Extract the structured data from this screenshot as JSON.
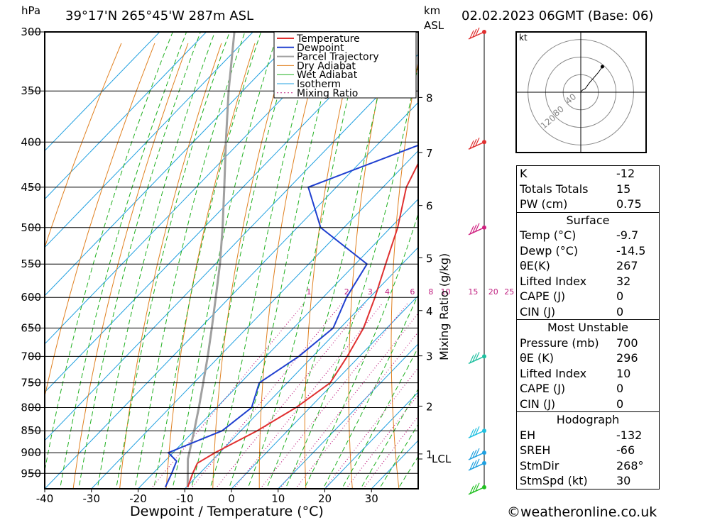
{
  "header": {
    "left_label": "hPa",
    "location": "39°17'N  265°45'W  287m  ASL",
    "km_label": "km",
    "asl_label": "ASL",
    "datetime": "02.02.2023  06GMT  (Base: 06)"
  },
  "chart_data": {
    "type": "skew-t",
    "xlabel": "Dewpoint / Temperature (°C)",
    "ylabel_right": "Mixing Ratio (g/kg)",
    "x_ticks": [
      -40,
      -30,
      -20,
      -10,
      0,
      10,
      20,
      30
    ],
    "pressure_levels": [
      300,
      350,
      400,
      450,
      500,
      550,
      600,
      650,
      700,
      750,
      800,
      850,
      900,
      950
    ],
    "km_ticks": [
      {
        "km": 1,
        "p": 903
      },
      {
        "km": 2,
        "p": 797
      },
      {
        "km": 3,
        "p": 699
      },
      {
        "km": 4,
        "p": 621
      },
      {
        "km": 5,
        "p": 541
      },
      {
        "km": 6,
        "p": 472
      },
      {
        "km": 7,
        "p": 411
      },
      {
        "km": 8,
        "p": 356
      }
    ],
    "lcl_label": "LCL",
    "lcl_pressure": 915,
    "mixing_ratio_labels": [
      "1",
      "2",
      "3",
      "4",
      "6",
      "8",
      "10",
      "15",
      "20",
      "25"
    ],
    "mixing_ratio_values": [
      1,
      2,
      3,
      4,
      6,
      8,
      10,
      15,
      20,
      25
    ],
    "legend": [
      "Temperature",
      "Dewpoint",
      "Parcel Trajectory",
      "Dry Adiabat",
      "Wet Adiabat",
      "Isotherm",
      "Mixing Ratio"
    ],
    "colors": {
      "temperature": "#e03030",
      "dewpoint": "#2040d0",
      "parcel": "#a0a0a0",
      "dry_adiabat": "#e08020",
      "wet_adiabat": "#20b020",
      "isotherm": "#20a0e0",
      "mixing_ratio": "#c02080"
    },
    "temperature_profile": [
      {
        "p": 985,
        "t": -9.7
      },
      {
        "p": 950,
        "t": -11.5
      },
      {
        "p": 925,
        "t": -12.6
      },
      {
        "p": 900,
        "t": -11.0
      },
      {
        "p": 850,
        "t": -6.5
      },
      {
        "p": 800,
        "t": -3.0
      },
      {
        "p": 750,
        "t": -0.8
      },
      {
        "p": 700,
        "t": -2.6
      },
      {
        "p": 650,
        "t": -5.0
      },
      {
        "p": 600,
        "t": -8.9
      },
      {
        "p": 550,
        "t": -13.5
      },
      {
        "p": 500,
        "t": -18.5
      },
      {
        "p": 450,
        "t": -25.0
      },
      {
        "p": 400,
        "t": -29.5
      },
      {
        "p": 350,
        "t": -37.0
      },
      {
        "p": 300,
        "t": -48.0
      }
    ],
    "dewpoint_profile": [
      {
        "p": 985,
        "t": -14.5
      },
      {
        "p": 950,
        "t": -16.0
      },
      {
        "p": 920,
        "t": -17.5
      },
      {
        "p": 900,
        "t": -21.0
      },
      {
        "p": 850,
        "t": -14.0
      },
      {
        "p": 800,
        "t": -12.5
      },
      {
        "p": 750,
        "t": -16.0
      },
      {
        "p": 700,
        "t": -13.0
      },
      {
        "p": 650,
        "t": -11.5
      },
      {
        "p": 600,
        "t": -15.0
      },
      {
        "p": 550,
        "t": -17.5
      },
      {
        "p": 500,
        "t": -35.0
      },
      {
        "p": 450,
        "t": -46.0
      },
      {
        "p": 400,
        "t": -30.0
      },
      {
        "p": 350,
        "t": -37.0
      },
      {
        "p": 300,
        "t": -54.0
      }
    ],
    "parcel_profile": [
      {
        "p": 985,
        "t": -9.7
      },
      {
        "p": 915,
        "t": -15.5
      },
      {
        "p": 850,
        "t": -20.0
      },
      {
        "p": 800,
        "t": -23.8
      },
      {
        "p": 750,
        "t": -28.0
      },
      {
        "p": 700,
        "t": -32.5
      },
      {
        "p": 650,
        "t": -37.5
      },
      {
        "p": 600,
        "t": -43.0
      },
      {
        "p": 550,
        "t": -49.0
      },
      {
        "p": 500,
        "t": -56.0
      },
      {
        "p": 450,
        "t": -64.0
      },
      {
        "p": 400,
        "t": -73.0
      },
      {
        "p": 350,
        "t": -83.0
      },
      {
        "p": 300,
        "t": -94.0
      }
    ],
    "wind_barbs": [
      {
        "p": 300,
        "color": "#e03030"
      },
      {
        "p": 400,
        "color": "#e03030"
      },
      {
        "p": 500,
        "color": "#d02080"
      },
      {
        "p": 700,
        "color": "#20c0a0"
      },
      {
        "p": 850,
        "color": "#20c0e0"
      },
      {
        "p": 900,
        "color": "#20a0e0"
      },
      {
        "p": 925,
        "color": "#20a0e0"
      },
      {
        "p": 985,
        "color": "#20c020"
      }
    ]
  },
  "hodograph": {
    "unit": "kt",
    "ring_labels": [
      "40",
      "80",
      "120"
    ],
    "points_kt": [
      [
        0,
        0
      ],
      [
        1,
        2
      ],
      [
        4,
        5
      ],
      [
        10,
        8
      ],
      [
        20,
        22
      ],
      [
        40,
        45
      ],
      [
        49,
        58
      ]
    ]
  },
  "indices": {
    "general": [
      {
        "label": "K",
        "value": "-12"
      },
      {
        "label": "Totals Totals",
        "value": "15"
      },
      {
        "label": "PW (cm)",
        "value": "0.75"
      }
    ],
    "surface": {
      "title": "Surface",
      "rows": [
        {
          "label": "Temp (°C)",
          "value": "-9.7"
        },
        {
          "label": "Dewp (°C)",
          "value": "-14.5"
        },
        {
          "label": "θE(K)",
          "value": "267"
        },
        {
          "label": "Lifted Index",
          "value": "32"
        },
        {
          "label": "CAPE (J)",
          "value": "0"
        },
        {
          "label": "CIN (J)",
          "value": "0"
        }
      ]
    },
    "most_unstable": {
      "title": "Most Unstable",
      "rows": [
        {
          "label": "Pressure (mb)",
          "value": "700"
        },
        {
          "label": "θE (K)",
          "value": "296"
        },
        {
          "label": "Lifted Index",
          "value": "10"
        },
        {
          "label": "CAPE (J)",
          "value": "0"
        },
        {
          "label": "CIN (J)",
          "value": "0"
        }
      ]
    },
    "hodograph": {
      "title": "Hodograph",
      "rows": [
        {
          "label": "EH",
          "value": "-132"
        },
        {
          "label": "SREH",
          "value": "-66"
        },
        {
          "label": "StmDir",
          "value": "268°"
        },
        {
          "label": "StmSpd (kt)",
          "value": "30"
        }
      ]
    }
  },
  "footer": {
    "copyright": "©weatheronline.co.uk"
  }
}
